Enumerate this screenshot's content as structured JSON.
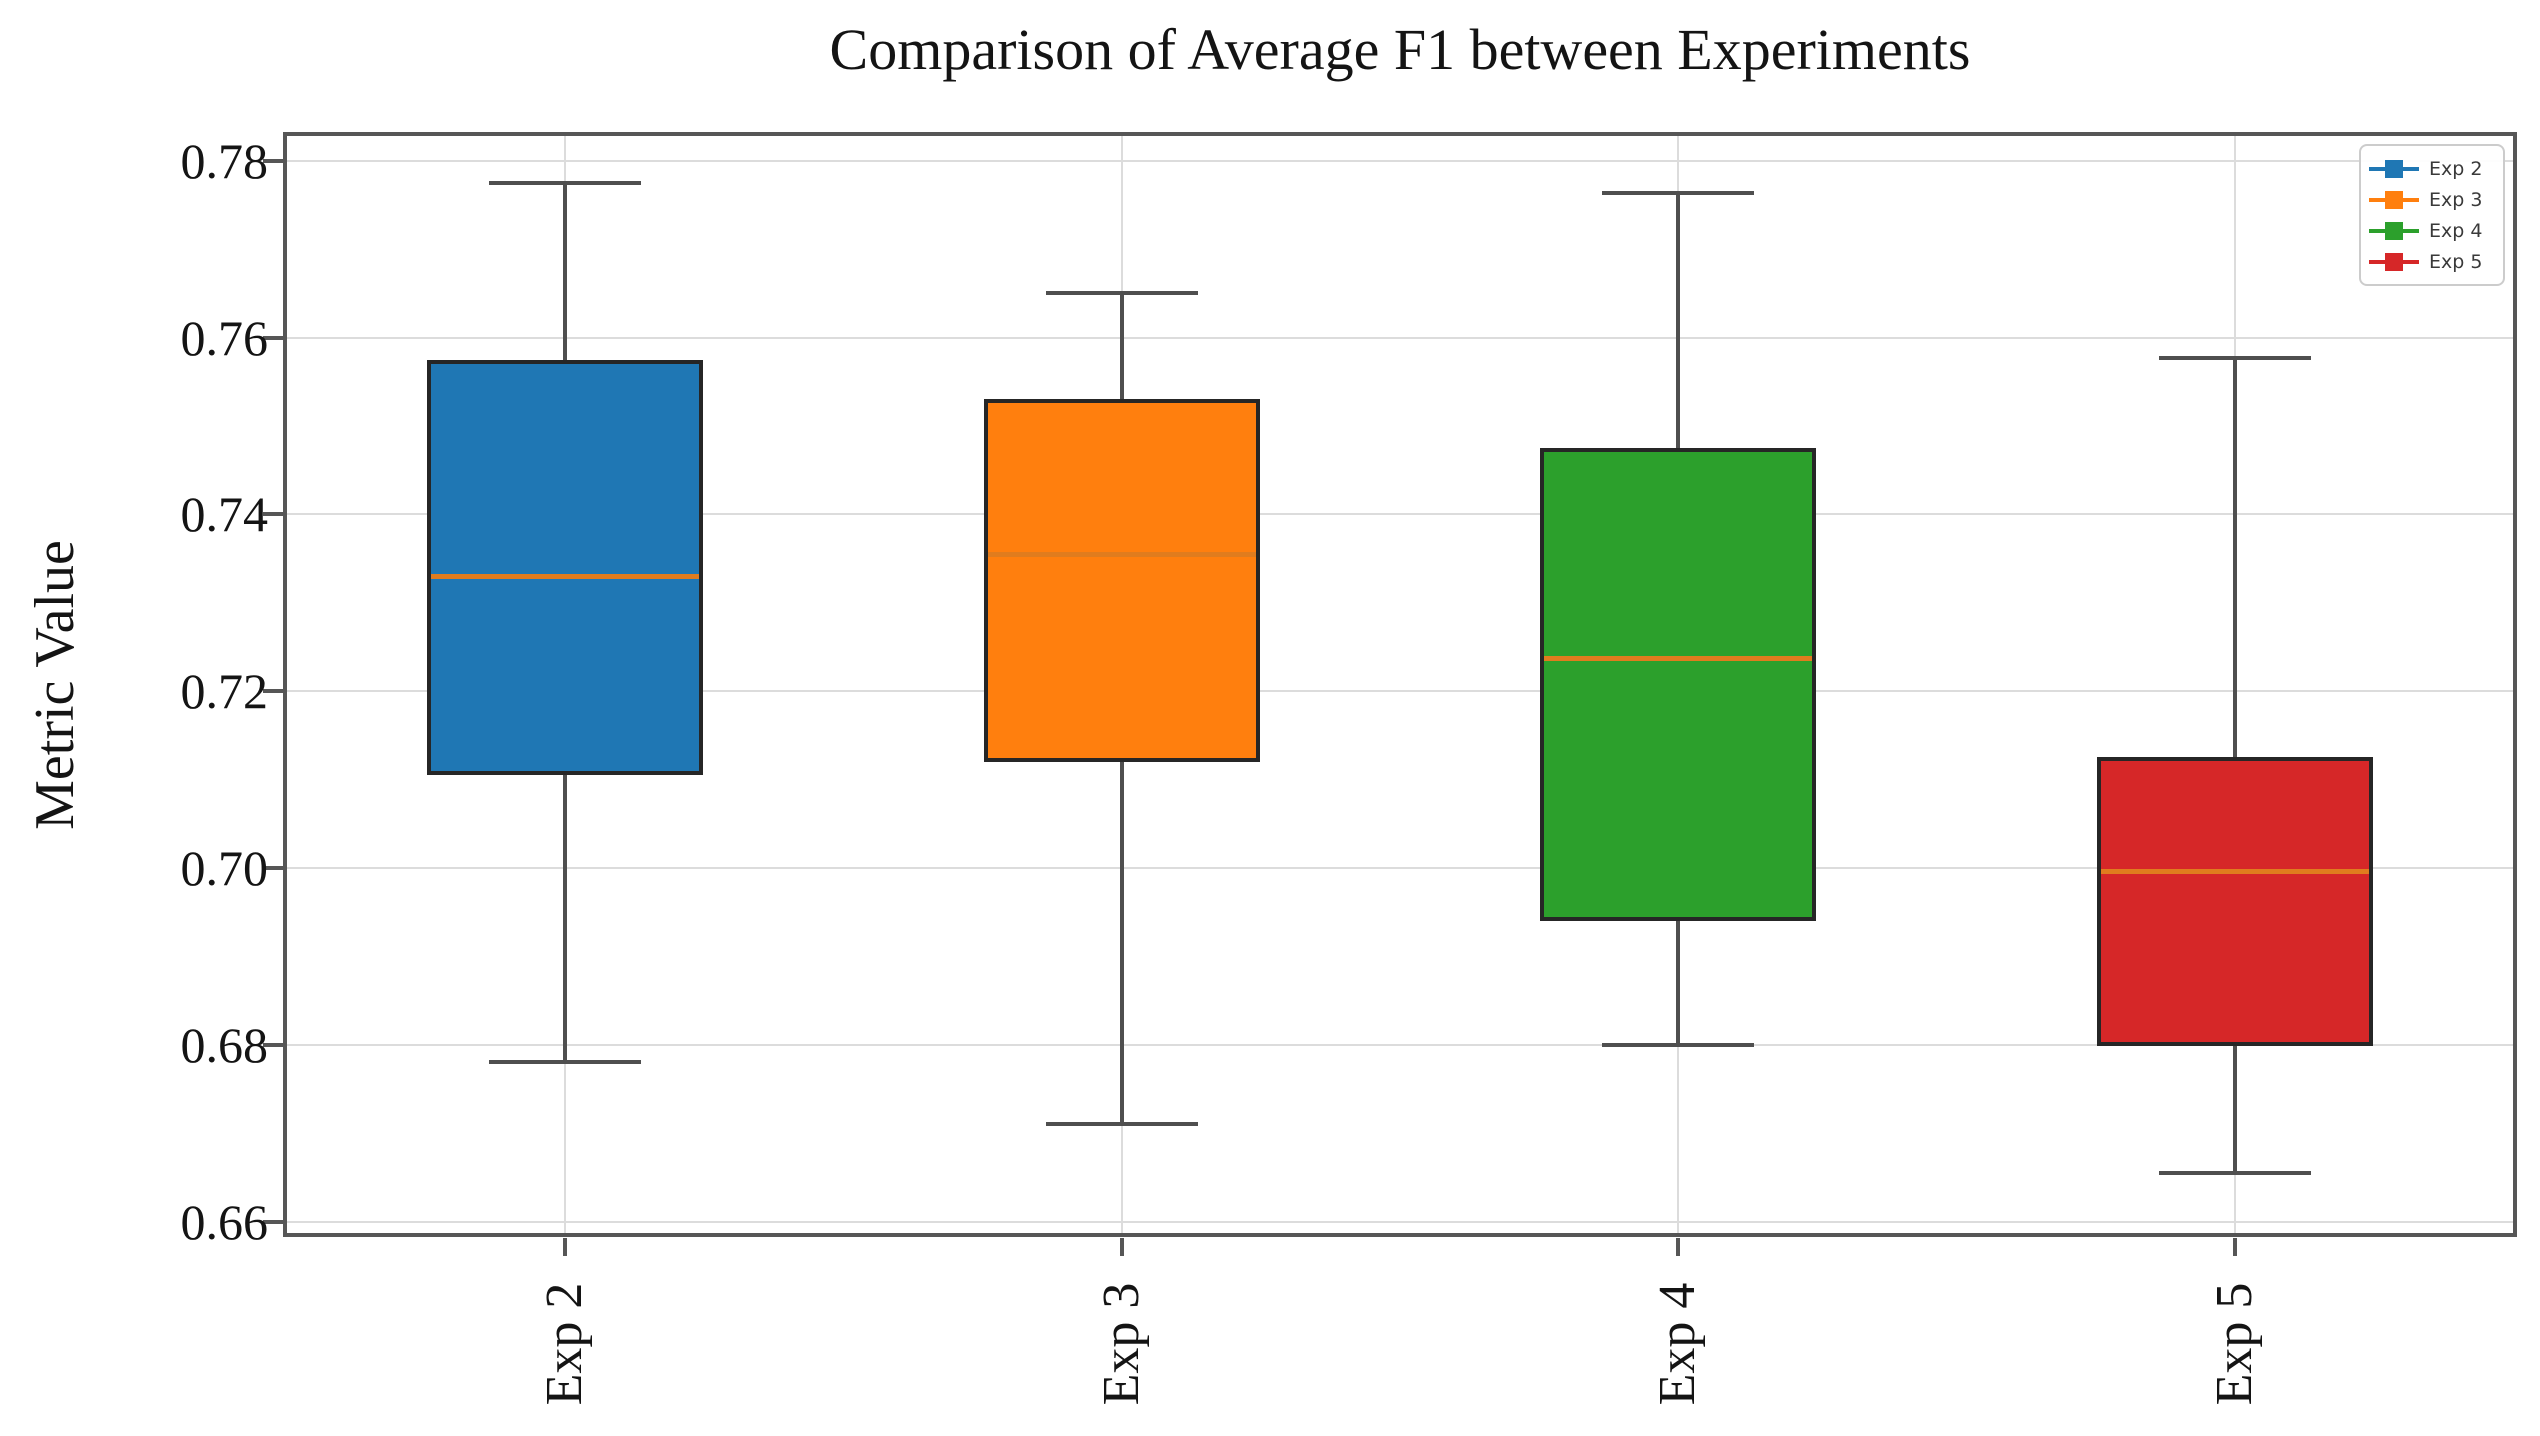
{
  "chart_data": {
    "type": "boxplot",
    "title": "Comparison of Average F1 between Experiments",
    "ylabel": "Metric Value",
    "xlabel": "",
    "categories": [
      "Exp 2",
      "Exp 3",
      "Exp 4",
      "Exp 5"
    ],
    "series": [
      {
        "name": "Exp 2",
        "color": "#1f77b4",
        "whislo": 0.678,
        "q1": 0.7105,
        "med": 0.733,
        "q3": 0.7575,
        "whishi": 0.7775
      },
      {
        "name": "Exp 3",
        "color": "#ff7f0e",
        "whislo": 0.671,
        "q1": 0.712,
        "med": 0.7355,
        "q3": 0.753,
        "whishi": 0.765
      },
      {
        "name": "Exp 4",
        "color": "#2ca02c",
        "whislo": 0.68,
        "q1": 0.694,
        "med": 0.7238,
        "q3": 0.7475,
        "whishi": 0.7763
      },
      {
        "name": "Exp 5",
        "color": "#d62728",
        "whislo": 0.6655,
        "q1": 0.6798,
        "med": 0.6997,
        "q3": 0.7125,
        "whishi": 0.7577
      }
    ],
    "yticks": [
      0.66,
      0.68,
      0.7,
      0.72,
      0.74,
      0.76,
      0.78
    ],
    "ytick_decimals": 2,
    "ylim": [
      0.6587,
      0.7828
    ],
    "grid": true,
    "grid_axes": "both",
    "legend_position": "upper right",
    "legend_entries": [
      "Exp 2",
      "Exp 3",
      "Exp 4",
      "Exp 5"
    ],
    "median_color": "#e07c1e",
    "box_edge_color": "#262626",
    "whisker_color": "#4f4f4f",
    "x_tick_rotation_deg": 90
  }
}
